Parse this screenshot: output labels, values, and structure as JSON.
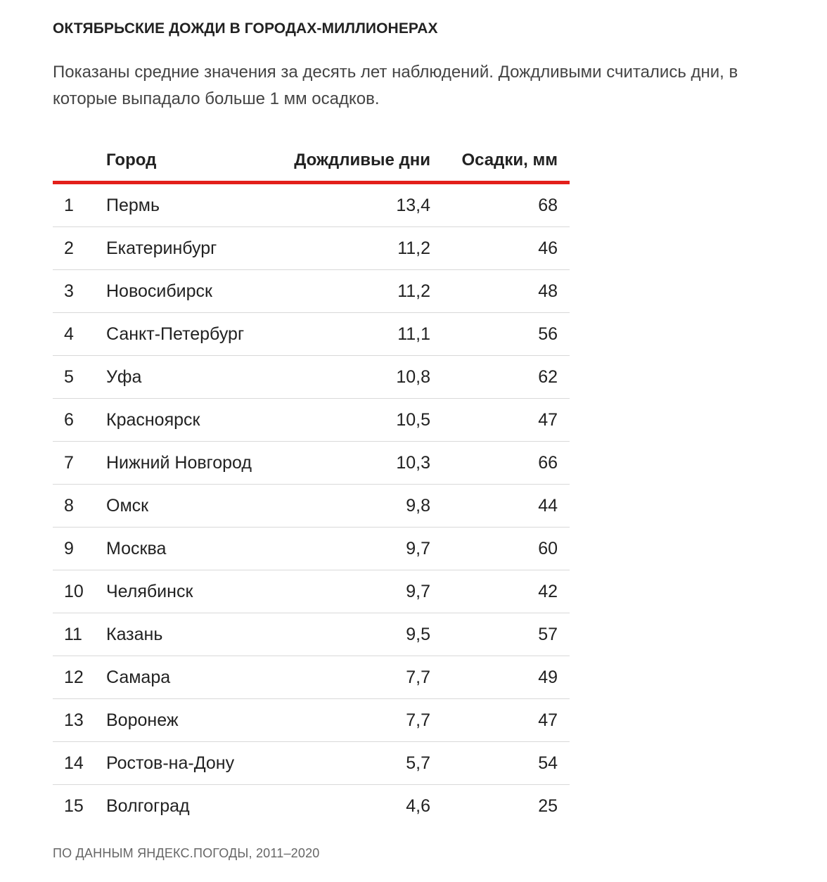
{
  "title": "ОКТЯБРЬСКИЕ ДОЖДИ В ГОРОДАХ-МИЛЛИОНЕРАХ",
  "subtitle": "Показаны средние значения за десять лет наблюдений. Дождливыми считались дни, в которые выпадало больше 1 мм осадков.",
  "accent_color": "#e3201b",
  "table": {
    "headers": {
      "rank": "",
      "city": "Город",
      "rainy_days": "Дождливые дни",
      "precipitation": "Осадки, мм"
    },
    "rows": [
      {
        "rank": "1",
        "city": "Пермь",
        "rainy_days": "13,4",
        "precipitation": "68"
      },
      {
        "rank": "2",
        "city": "Екатеринбург",
        "rainy_days": "11,2",
        "precipitation": "46"
      },
      {
        "rank": "3",
        "city": "Новосибирск",
        "rainy_days": "11,2",
        "precipitation": "48"
      },
      {
        "rank": "4",
        "city": "Санкт-Петербург",
        "rainy_days": "11,1",
        "precipitation": "56"
      },
      {
        "rank": "5",
        "city": "Уфа",
        "rainy_days": "10,8",
        "precipitation": "62"
      },
      {
        "rank": "6",
        "city": "Красноярск",
        "rainy_days": "10,5",
        "precipitation": "47"
      },
      {
        "rank": "7",
        "city": "Нижний Новгород",
        "rainy_days": "10,3",
        "precipitation": "66"
      },
      {
        "rank": "8",
        "city": "Омск",
        "rainy_days": "9,8",
        "precipitation": "44"
      },
      {
        "rank": "9",
        "city": "Москва",
        "rainy_days": "9,7",
        "precipitation": "60"
      },
      {
        "rank": "10",
        "city": "Челябинск",
        "rainy_days": "9,7",
        "precipitation": "42"
      },
      {
        "rank": "11",
        "city": "Казань",
        "rainy_days": "9,5",
        "precipitation": "57"
      },
      {
        "rank": "12",
        "city": "Самара",
        "rainy_days": "7,7",
        "precipitation": "49"
      },
      {
        "rank": "13",
        "city": "Воронеж",
        "rainy_days": "7,7",
        "precipitation": "47"
      },
      {
        "rank": "14",
        "city": "Ростов-на-Дону",
        "rainy_days": "5,7",
        "precipitation": "54"
      },
      {
        "rank": "15",
        "city": "Волгоград",
        "rainy_days": "4,6",
        "precipitation": "25"
      }
    ]
  },
  "source": "ПО ДАННЫМ ЯНДЕКС.ПОГОДЫ, 2011–2020"
}
